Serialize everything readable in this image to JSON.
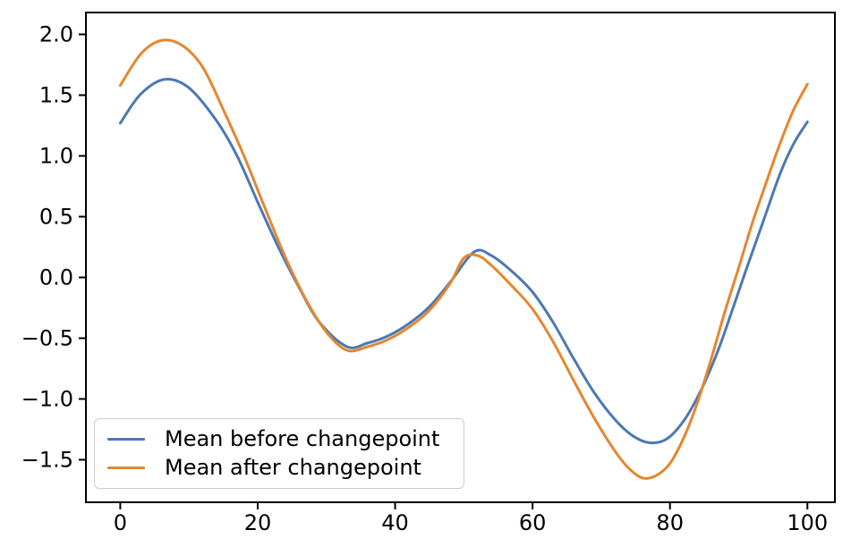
{
  "chart_data": {
    "type": "line",
    "title": "",
    "xlabel": "",
    "ylabel": "",
    "xlim": [
      -5,
      104
    ],
    "ylim": [
      -1.85,
      2.18
    ],
    "grid": false,
    "legend_position": "lower left",
    "x_ticks": [
      0,
      20,
      40,
      60,
      80,
      100
    ],
    "x_tick_labels": [
      "0",
      "20",
      "40",
      "60",
      "80",
      "100"
    ],
    "y_ticks": [
      2.0,
      1.5,
      1.0,
      0.5,
      0.0,
      -0.5,
      -1.0,
      -1.5
    ],
    "y_tick_labels": [
      "2.0",
      "1.5",
      "1.0",
      "0.5",
      "0.0",
      "−0.5",
      "−1.0",
      "−1.5"
    ],
    "series": [
      {
        "name": "Mean before changepoint",
        "color": "#4c78b4",
        "x": [
          0,
          3,
          6.5,
          10,
          14,
          17,
          20,
          23,
          26,
          29,
          33,
          36,
          39,
          42,
          45,
          48,
          51.5,
          54,
          57,
          60,
          63,
          66,
          69,
          72,
          74.5,
          77,
          79.5,
          82,
          84.5,
          87,
          89,
          91,
          93.5,
          96,
          98,
          100
        ],
        "values": [
          1.27,
          1.51,
          1.63,
          1.56,
          1.29,
          1.0,
          0.62,
          0.25,
          -0.08,
          -0.37,
          -0.57,
          -0.54,
          -0.48,
          -0.38,
          -0.24,
          -0.04,
          0.21,
          0.18,
          0.05,
          -0.12,
          -0.37,
          -0.67,
          -0.95,
          -1.17,
          -1.3,
          -1.36,
          -1.33,
          -1.18,
          -0.93,
          -0.6,
          -0.28,
          0.05,
          0.45,
          0.85,
          1.1,
          1.28
        ]
      },
      {
        "name": "Mean after changepoint",
        "color": "#e4872e",
        "x": [
          0,
          3,
          6,
          9,
          12,
          15,
          18,
          21,
          24,
          27,
          30,
          33,
          36,
          39,
          42,
          45,
          48,
          50,
          52,
          54,
          57,
          60,
          63,
          66,
          69,
          72,
          74,
          76,
          78,
          80,
          82,
          84,
          86,
          88,
          90,
          92,
          94,
          96,
          98,
          100
        ],
        "values": [
          1.58,
          1.84,
          1.95,
          1.91,
          1.73,
          1.38,
          1.0,
          0.58,
          0.17,
          -0.18,
          -0.45,
          -0.6,
          -0.57,
          -0.51,
          -0.41,
          -0.27,
          -0.05,
          0.16,
          0.18,
          0.1,
          -0.07,
          -0.26,
          -0.53,
          -0.85,
          -1.16,
          -1.43,
          -1.57,
          -1.65,
          -1.63,
          -1.53,
          -1.32,
          -1.03,
          -0.67,
          -0.28,
          0.08,
          0.45,
          0.78,
          1.1,
          1.38,
          1.59
        ]
      }
    ],
    "style": {
      "spine_color": "#000000",
      "tick_color": "#000000",
      "tick_label_color": "#000000",
      "background": "#ffffff",
      "tick_font_px": 24,
      "line_width": 3
    }
  }
}
